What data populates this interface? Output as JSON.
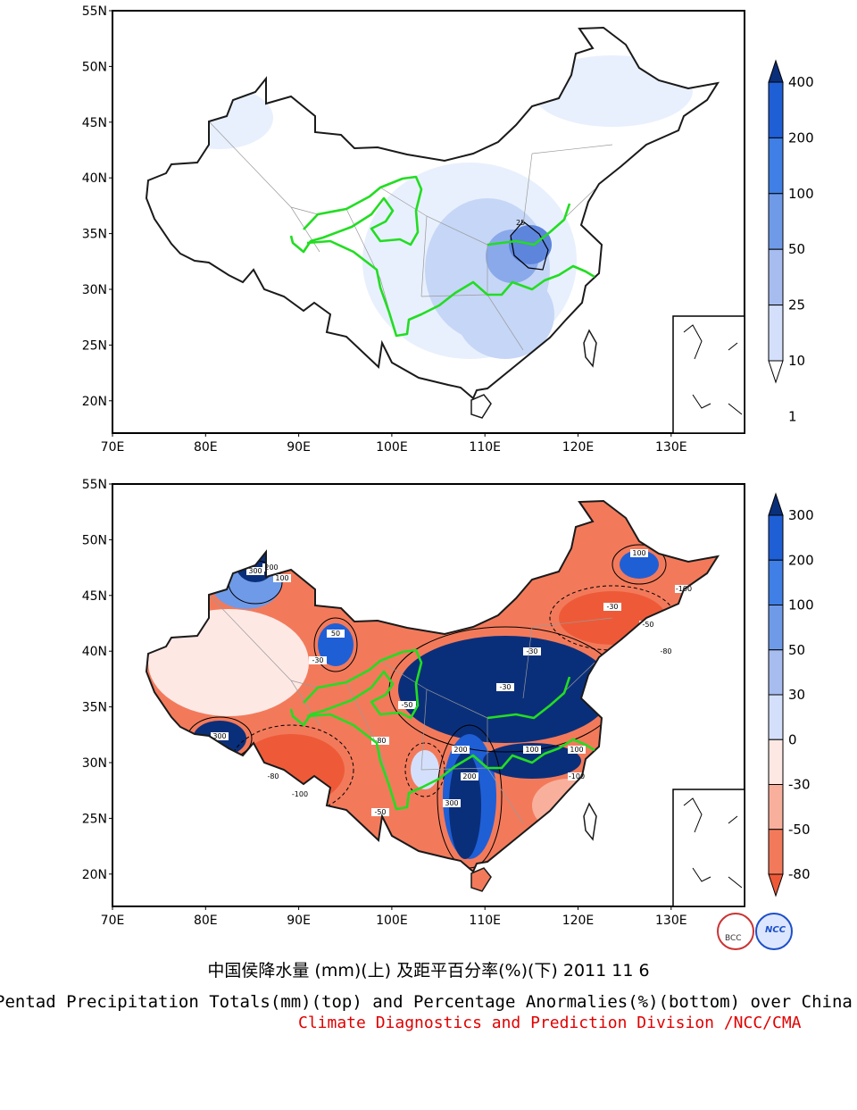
{
  "maps": [
    {
      "id": "top",
      "lat_ticks": [
        "55N",
        "50N",
        "45N",
        "40N",
        "35N",
        "30N",
        "25N",
        "20N"
      ],
      "lon_ticks": [
        "70E",
        "80E",
        "90E",
        "100E",
        "110E",
        "120E",
        "130E"
      ],
      "legend_labels": [
        "400",
        "200",
        "100",
        "50",
        "25",
        "10",
        "1"
      ],
      "legend_colors": [
        "#0a2f7a",
        "#1f5fd6",
        "#3f7fe6",
        "#6f9ae8",
        "#a7bdf0",
        "#d4e0fb",
        "#ffffff"
      ],
      "contour_label": "25"
    },
    {
      "id": "bottom",
      "lat_ticks": [
        "55N",
        "50N",
        "45N",
        "40N",
        "35N",
        "30N",
        "25N",
        "20N"
      ],
      "lon_ticks": [
        "70E",
        "80E",
        "90E",
        "100E",
        "110E",
        "120E",
        "130E"
      ],
      "legend_labels": [
        "300",
        "200",
        "100",
        "50",
        "30",
        "0",
        "-30",
        "-50",
        "-80"
      ],
      "legend_colors": [
        "#0a2f7a",
        "#1f5fd6",
        "#3f7fe6",
        "#6f9ae8",
        "#a7bdf0",
        "#d4e0fb",
        "#fde8e4",
        "#f8b09d",
        "#f27a5b",
        "#ee5a38"
      ],
      "contour_labels": [
        "300",
        "200",
        "100",
        "50",
        "-30",
        "-50",
        "-80",
        "-100",
        "300",
        "200",
        "100",
        "-30",
        "-50",
        "-80",
        "-100",
        "100",
        "-30",
        "-50",
        "-80",
        "-100",
        "300",
        "200",
        "100",
        "-30"
      ]
    }
  ],
  "captions": {
    "chinese": "中国侯降水量 (mm)(上) 及距平百分率(%)(下) 2011 11 6",
    "english": "Pentad Precipitation Totals(mm)(top) and Percentage Anormalies(%)(bottom) over China",
    "division": "Climate Diagnostics and Prediction Division /NCC/CMA"
  },
  "logos": [
    "BCC",
    "NCC"
  ]
}
